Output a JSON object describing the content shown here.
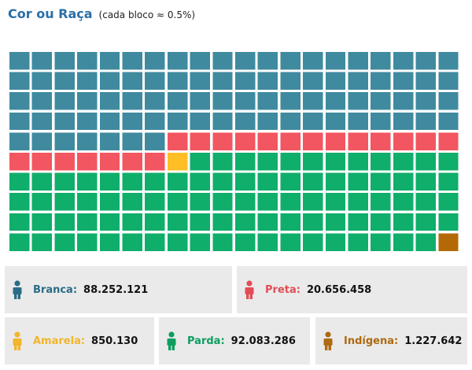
{
  "title": "Cor ou Raça",
  "subtitle": "(cada bloco ≈ 0.5%)",
  "chart_data": {
    "type": "waffle",
    "title": "Cor ou Raça",
    "subtitle": "(cada bloco ≈ 0.5%)",
    "rows": 10,
    "cols": 20,
    "categories": [
      {
        "key": "branca",
        "name": "Branca",
        "value": "88.252.121",
        "blocks": 87,
        "color": "#3f8a9f",
        "label_color": "#2a6c86"
      },
      {
        "key": "preta",
        "name": "Preta",
        "value": "20.656.458",
        "blocks": 20,
        "color": "#f25660",
        "label_color": "#e24d55"
      },
      {
        "key": "amarela",
        "name": "Amarela",
        "value": "850.130",
        "blocks": 1,
        "color": "#ffbe25",
        "label_color": "#f2b52c"
      },
      {
        "key": "parda",
        "name": "Parda",
        "value": "92.083.286",
        "blocks": 91,
        "color": "#0fae6a",
        "label_color": "#0c9e60"
      },
      {
        "key": "indigena",
        "name": "Indígena",
        "value": "1.227.642",
        "blocks": 1,
        "color": "#b36a06",
        "label_color": "#ad6a10"
      }
    ]
  }
}
